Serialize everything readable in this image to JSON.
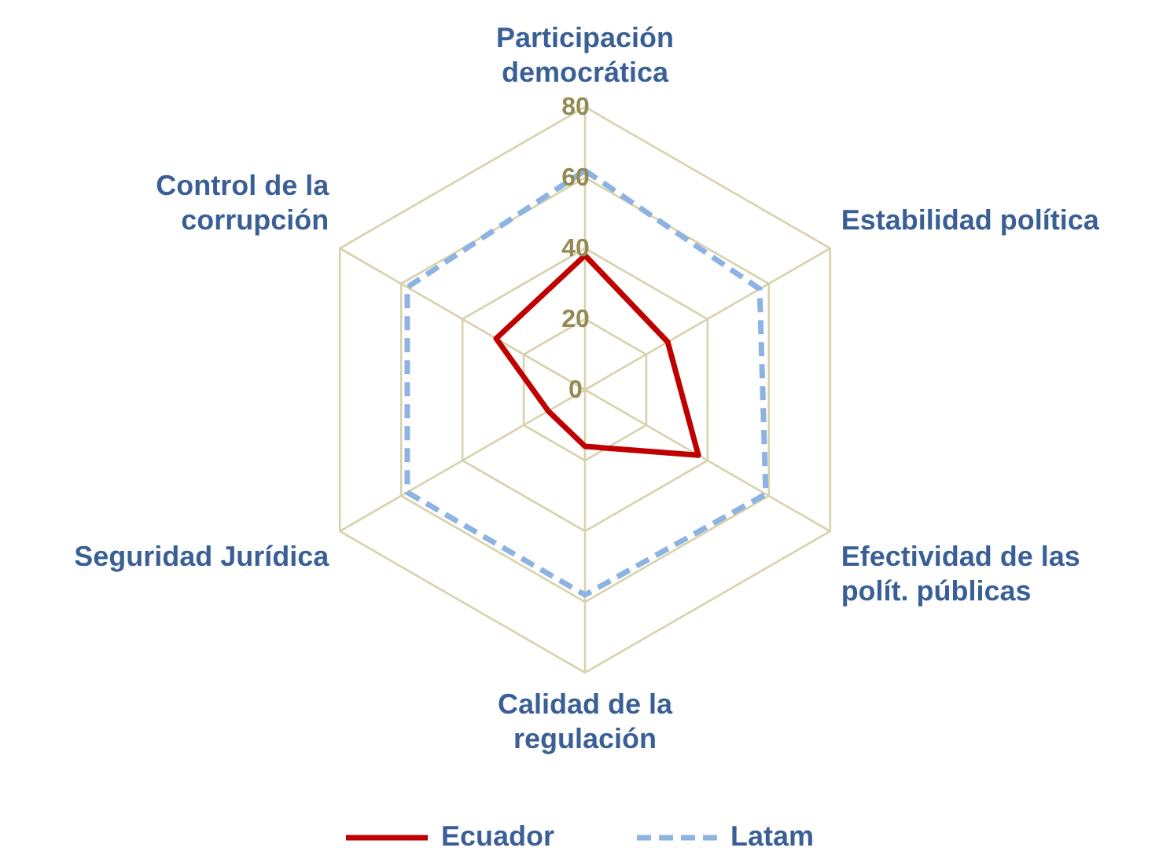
{
  "chart_data": {
    "type": "radar",
    "categories": [
      "Participación\ndemocrática",
      "Estabilidad política",
      "Efectividad de las\npolít. públicas",
      "Calidad de la\nregulación",
      "Seguridad Jurídica",
      "Control de la\ncorrupción"
    ],
    "series": [
      {
        "name": "Ecuador",
        "color": "#c00000",
        "line_style": "solid",
        "values": [
          38,
          27,
          37,
          16,
          12,
          29
        ]
      },
      {
        "name": "Latam",
        "color": "#8db3e2",
        "line_style": "dashed",
        "values": [
          62,
          57,
          59,
          58,
          58,
          58
        ]
      }
    ],
    "ylim": [
      0,
      80
    ],
    "yticks": [
      0,
      20,
      40,
      60,
      80
    ],
    "grid": true,
    "legend": "bottom",
    "marker": "none"
  }
}
